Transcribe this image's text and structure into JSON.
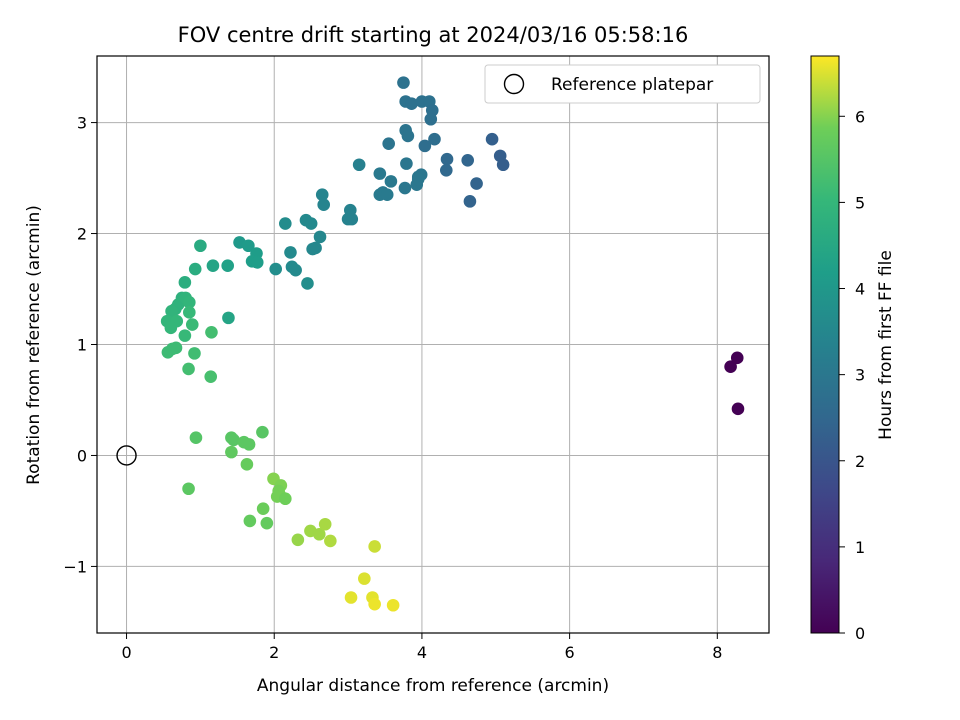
{
  "chart_data": {
    "type": "scatter",
    "title": "FOV centre drift starting at 2024/03/16 05:58:16",
    "xlabel": "Angular distance from reference (arcmin)",
    "ylabel": "Rotation from reference (arcmin)",
    "xlim": [
      -0.4,
      8.7
    ],
    "ylim": [
      -1.6,
      3.6
    ],
    "xticks": [
      0,
      2,
      4,
      6,
      8
    ],
    "yticks": [
      -1,
      0,
      1,
      2,
      3
    ],
    "ytick_labels": [
      "−1",
      "0",
      "1",
      "2",
      "3"
    ],
    "grid": true,
    "legend": {
      "label": "Reference platepar",
      "placement": "upper-right"
    },
    "reference_point": {
      "x": 0,
      "y": 0
    },
    "colorbar": {
      "label": "Hours from first FF file",
      "colormap": "viridis",
      "range": [
        0,
        6.7
      ],
      "ticks": [
        0,
        1,
        2,
        3,
        4,
        5,
        6
      ]
    },
    "series": [
      {
        "x": [
          8.18,
          8.27,
          8.28,
          3.75,
          3.78,
          3.86,
          4.0,
          4.1,
          4.14,
          4.12,
          3.78,
          3.81,
          3.55,
          3.79,
          3.95,
          3.99,
          4.04,
          4.17,
          4.95,
          5.06,
          5.1,
          4.62,
          4.34,
          4.33,
          4.74,
          4.65,
          3.43,
          3.47,
          3.58,
          3.43,
          3.53,
          3.77,
          3.93,
          3.95,
          3.15,
          2.65,
          2.67,
          3.03,
          3.05,
          3.0,
          2.43,
          2.5,
          2.15,
          2.22,
          2.24,
          2.29,
          2.56,
          2.52,
          2.62,
          2.02,
          2.45,
          1.53,
          1.65,
          1.76,
          1.7,
          1.77,
          1.37,
          1.17,
          1.0,
          0.93,
          0.79,
          0.75,
          0.7,
          0.8,
          0.85,
          0.66,
          0.61,
          0.55,
          0.68,
          0.6,
          0.79,
          0.85,
          0.89,
          0.62,
          0.56,
          0.67,
          0.92,
          1.38,
          1.15,
          0.84,
          1.14,
          0.94,
          1.42,
          1.45,
          1.59,
          1.66,
          1.84,
          1.42,
          1.63,
          0.84,
          1.99,
          2.09,
          2.08,
          2.06,
          2.04,
          2.15,
          1.85,
          1.67,
          1.9,
          2.32,
          2.49,
          2.61,
          2.69,
          2.76,
          3.36,
          3.22,
          3.04,
          3.33,
          3.36,
          3.61
        ],
        "y": [
          0.8,
          0.88,
          0.42,
          3.36,
          3.19,
          3.17,
          3.19,
          3.19,
          3.11,
          3.03,
          2.93,
          2.88,
          2.81,
          2.63,
          2.51,
          2.53,
          2.79,
          2.85,
          2.85,
          2.7,
          2.62,
          2.66,
          2.67,
          2.57,
          2.45,
          2.29,
          2.54,
          2.37,
          2.47,
          2.35,
          2.35,
          2.41,
          2.44,
          2.49,
          2.62,
          2.35,
          2.26,
          2.21,
          2.13,
          2.13,
          2.12,
          2.09,
          2.09,
          1.83,
          1.7,
          1.67,
          1.87,
          1.86,
          1.97,
          1.68,
          1.55,
          1.92,
          1.89,
          1.82,
          1.75,
          1.74,
          1.71,
          1.71,
          1.89,
          1.68,
          1.56,
          1.42,
          1.36,
          1.42,
          1.38,
          1.32,
          1.3,
          1.21,
          1.21,
          1.15,
          1.08,
          1.29,
          1.18,
          0.96,
          0.93,
          0.97,
          0.92,
          1.24,
          1.11,
          0.78,
          0.71,
          0.16,
          0.16,
          0.14,
          0.12,
          0.1,
          0.21,
          0.03,
          -0.08,
          -0.3,
          -0.21,
          -0.27,
          -0.36,
          -0.32,
          -0.37,
          -0.39,
          -0.48,
          -0.59,
          -0.61,
          -0.76,
          -0.68,
          -0.71,
          -0.62,
          -0.77,
          -0.82,
          -1.11,
          -1.28,
          -1.28,
          -1.34,
          -1.35
        ],
        "hours": [
          0.0,
          0.0,
          0.0,
          2.85,
          2.85,
          2.8,
          2.8,
          2.8,
          2.75,
          2.75,
          2.9,
          2.9,
          2.9,
          2.95,
          2.95,
          2.95,
          2.7,
          2.7,
          2.3,
          2.25,
          2.25,
          2.45,
          2.55,
          2.55,
          2.4,
          2.4,
          3.05,
          3.05,
          3.05,
          3.1,
          3.1,
          3.0,
          3.0,
          3.0,
          3.3,
          3.4,
          3.4,
          3.35,
          3.35,
          3.35,
          3.55,
          3.55,
          3.65,
          3.6,
          3.6,
          3.6,
          3.5,
          3.5,
          3.5,
          3.7,
          3.7,
          4.05,
          4.1,
          4.15,
          4.2,
          4.2,
          4.3,
          4.4,
          4.6,
          4.65,
          4.7,
          4.8,
          4.85,
          4.9,
          4.95,
          4.85,
          4.9,
          4.95,
          5.0,
          5.0,
          5.05,
          5.05,
          5.1,
          5.15,
          5.15,
          5.15,
          5.2,
          4.4,
          5.25,
          5.25,
          5.3,
          5.5,
          5.55,
          5.55,
          5.6,
          5.6,
          5.55,
          5.65,
          5.75,
          5.6,
          6.0,
          5.95,
          5.95,
          5.9,
          5.9,
          5.85,
          5.8,
          5.7,
          5.7,
          6.1,
          6.15,
          6.15,
          6.2,
          6.25,
          6.4,
          6.5,
          6.55,
          6.55,
          6.6,
          6.6
        ]
      }
    ]
  }
}
